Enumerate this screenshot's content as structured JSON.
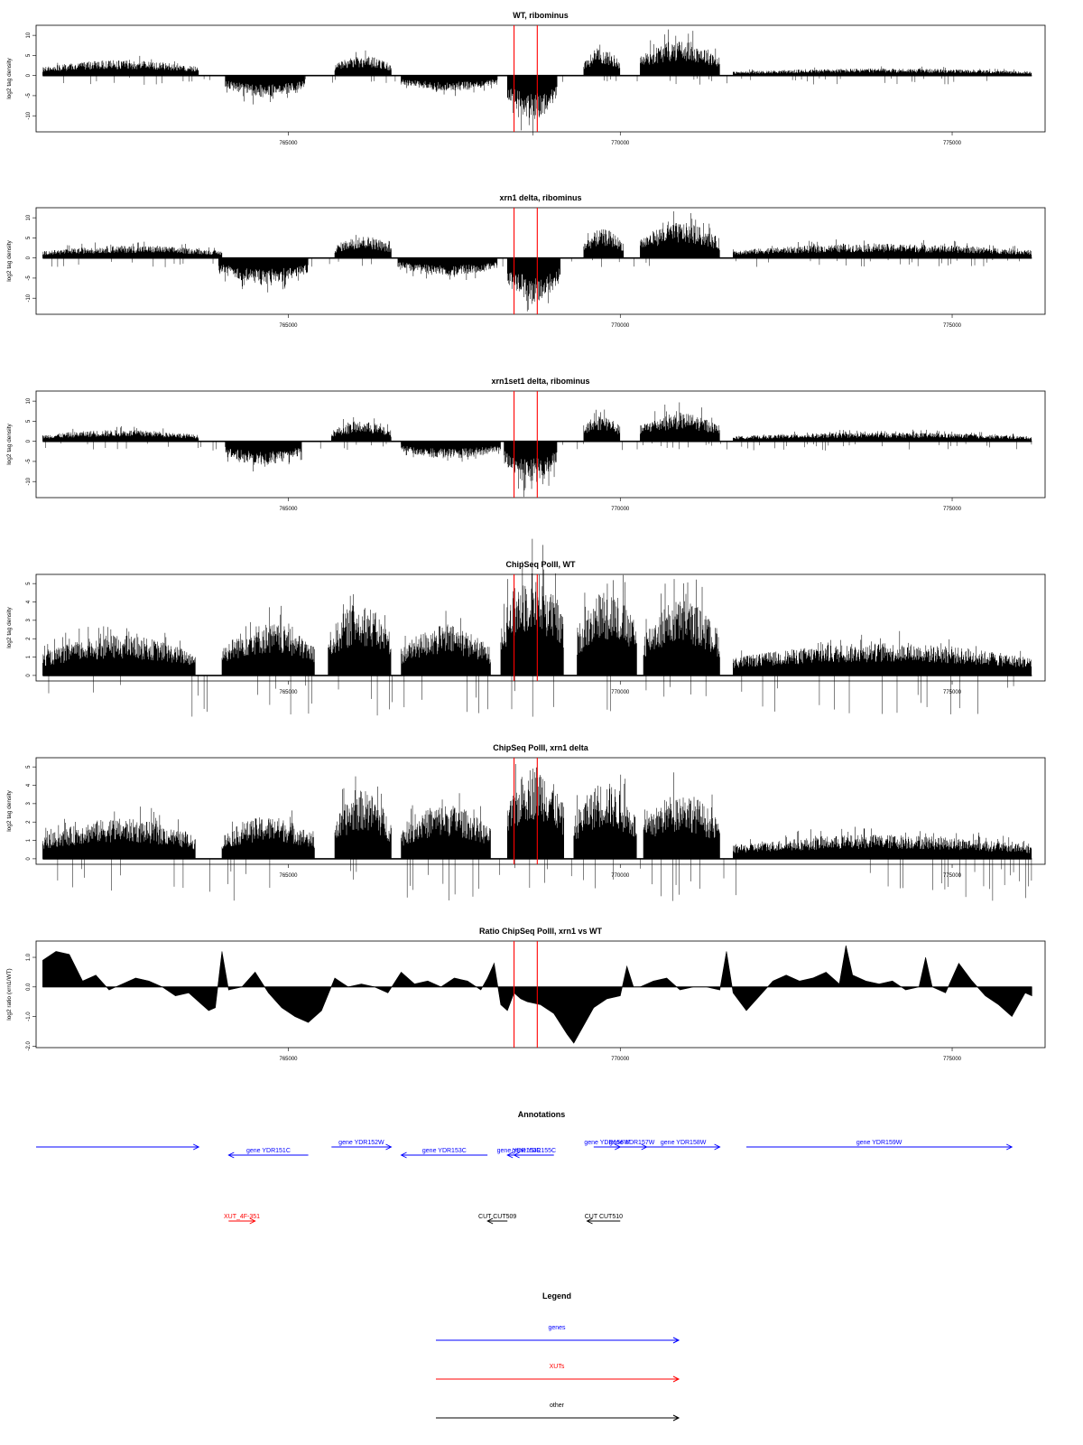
{
  "chart_data": [
    {
      "type": "bar",
      "title": "WT, ribominus",
      "ylabel": "log2 tag density",
      "ylim": [
        -14,
        12.5
      ],
      "yticks": [
        -10,
        -5,
        0,
        5,
        10
      ],
      "xlim": [
        761200,
        776400
      ],
      "xticks": [
        765000,
        770000,
        775000
      ],
      "vlines": [
        768400,
        768750
      ],
      "regions": [
        {
          "start": 761300,
          "end": 763650,
          "strand": "+",
          "amp": 3.5
        },
        {
          "start": 764050,
          "end": 765250,
          "strand": "-",
          "amp": 5.0
        },
        {
          "start": 765700,
          "end": 766550,
          "strand": "+",
          "amp": 4.5
        },
        {
          "start": 766700,
          "end": 768150,
          "strand": "-",
          "amp": 3.5
        },
        {
          "start": 768300,
          "end": 769050,
          "strand": "-",
          "amp": 10.0
        },
        {
          "start": 769450,
          "end": 770000,
          "strand": "+",
          "amp": 6.0
        },
        {
          "start": 770300,
          "end": 771500,
          "strand": "+",
          "amp": 8.0
        },
        {
          "start": 771700,
          "end": 776200,
          "strand": "+",
          "amp": 1.6
        }
      ]
    },
    {
      "type": "bar",
      "title": "xrn1 delta, ribominus",
      "ylabel": "log2 tag density",
      "ylim": [
        -14,
        12.5
      ],
      "yticks": [
        -10,
        -5,
        0,
        5,
        10
      ],
      "xlim": [
        761200,
        776400
      ],
      "xticks": [
        765000,
        770000,
        775000
      ],
      "vlines": [
        768400,
        768750
      ],
      "regions": [
        {
          "start": 761300,
          "end": 764000,
          "strand": "+",
          "amp": 2.8
        },
        {
          "start": 763950,
          "end": 765300,
          "strand": "-",
          "amp": 6.0
        },
        {
          "start": 765700,
          "end": 766550,
          "strand": "+",
          "amp": 5.0
        },
        {
          "start": 766650,
          "end": 768150,
          "strand": "-",
          "amp": 4.0
        },
        {
          "start": 768300,
          "end": 769100,
          "strand": "-",
          "amp": 10.0
        },
        {
          "start": 769450,
          "end": 770050,
          "strand": "+",
          "amp": 6.5
        },
        {
          "start": 770300,
          "end": 771500,
          "strand": "+",
          "amp": 8.0
        },
        {
          "start": 771700,
          "end": 776200,
          "strand": "+",
          "amp": 3.2
        }
      ]
    },
    {
      "type": "bar",
      "title": "xrn1set1 delta, ribominus",
      "ylabel": "log2 tag density",
      "ylim": [
        -14,
        12.5
      ],
      "yticks": [
        -10,
        -5,
        0,
        5,
        10
      ],
      "xlim": [
        761200,
        776400
      ],
      "xticks": [
        765000,
        770000,
        775000
      ],
      "vlines": [
        768400,
        768750
      ],
      "regions": [
        {
          "start": 761300,
          "end": 763650,
          "strand": "+",
          "amp": 2.6
        },
        {
          "start": 764050,
          "end": 765200,
          "strand": "-",
          "amp": 5.5
        },
        {
          "start": 765650,
          "end": 766550,
          "strand": "+",
          "amp": 4.5
        },
        {
          "start": 766700,
          "end": 768200,
          "strand": "-",
          "amp": 4.0
        },
        {
          "start": 768250,
          "end": 769050,
          "strand": "-",
          "amp": 9.5
        },
        {
          "start": 769450,
          "end": 770000,
          "strand": "+",
          "amp": 6.0
        },
        {
          "start": 770300,
          "end": 771500,
          "strand": "+",
          "amp": 6.5
        },
        {
          "start": 771700,
          "end": 776200,
          "strand": "+",
          "amp": 2.0
        }
      ]
    },
    {
      "type": "bar",
      "title": "ChipSeq PolII, WT",
      "ylabel": "log2 tag density",
      "ylim": [
        -0.3,
        5.5
      ],
      "yticks": [
        0,
        1,
        2,
        3,
        4,
        5
      ],
      "xlim": [
        761200,
        776400
      ],
      "xticks": [
        765000,
        770000,
        775000
      ],
      "vlines": [
        768400,
        768750
      ],
      "regions": [
        {
          "start": 761300,
          "end": 763600,
          "strand": "+",
          "amp": 2.0
        },
        {
          "start": 764000,
          "end": 765400,
          "strand": "+",
          "amp": 2.6
        },
        {
          "start": 765600,
          "end": 766550,
          "strand": "+",
          "amp": 3.6
        },
        {
          "start": 766700,
          "end": 768050,
          "strand": "+",
          "amp": 2.5
        },
        {
          "start": 768200,
          "end": 769150,
          "strand": "+",
          "amp": 5.2
        },
        {
          "start": 769350,
          "end": 770250,
          "strand": "+",
          "amp": 4.3
        },
        {
          "start": 770350,
          "end": 771500,
          "strand": "+",
          "amp": 3.8
        },
        {
          "start": 771700,
          "end": 776200,
          "strand": "+",
          "amp": 1.6
        }
      ]
    },
    {
      "type": "bar",
      "title": "ChipSeq PolII, xrn1 delta",
      "ylabel": "log2 tag density",
      "ylim": [
        -0.3,
        5.5
      ],
      "yticks": [
        0,
        1,
        2,
        3,
        4,
        5
      ],
      "xlim": [
        761200,
        776400
      ],
      "xticks": [
        765000,
        770000,
        775000
      ],
      "vlines": [
        768400,
        768750
      ],
      "regions": [
        {
          "start": 761300,
          "end": 763600,
          "strand": "+",
          "amp": 2.0
        },
        {
          "start": 764000,
          "end": 765400,
          "strand": "+",
          "amp": 2.1
        },
        {
          "start": 765700,
          "end": 766550,
          "strand": "+",
          "amp": 3.4
        },
        {
          "start": 766700,
          "end": 768050,
          "strand": "+",
          "amp": 2.7
        },
        {
          "start": 768300,
          "end": 769150,
          "strand": "+",
          "amp": 4.7
        },
        {
          "start": 769300,
          "end": 770250,
          "strand": "+",
          "amp": 3.8
        },
        {
          "start": 770350,
          "end": 771500,
          "strand": "+",
          "amp": 3.3
        },
        {
          "start": 771700,
          "end": 776200,
          "strand": "+",
          "amp": 1.2
        }
      ]
    },
    {
      "type": "area",
      "title": "Ratio ChipSeq PolII, xrn1 vs WT",
      "ylabel": "log2 ratio (xrn1/WT)",
      "ylim": [
        -2.05,
        1.55
      ],
      "yticks": [
        -2.0,
        -1.0,
        0.0,
        1.0
      ],
      "ytick_labels": [
        "-2.0",
        "-1.0",
        "0.0",
        "1.0"
      ],
      "xlim": [
        761200,
        776400
      ],
      "xticks": [
        765000,
        770000,
        775000
      ],
      "vlines": [
        768400,
        768750
      ],
      "x": [
        761300,
        761500,
        761700,
        761900,
        762100,
        762300,
        762500,
        762700,
        762900,
        763100,
        763300,
        763500,
        763700,
        763800,
        763900,
        764000,
        764100,
        764300,
        764500,
        764700,
        764900,
        765100,
        765300,
        765500,
        765700,
        765900,
        766100,
        766300,
        766500,
        766700,
        766900,
        767100,
        767300,
        767500,
        767700,
        767900,
        768000,
        768100,
        768200,
        768300,
        768400,
        768500,
        768600,
        768800,
        769000,
        769200,
        769300,
        769400,
        769600,
        769800,
        770000,
        770100,
        770200,
        770300,
        770500,
        770700,
        770900,
        771100,
        771300,
        771500,
        771600,
        771700,
        771900,
        772100,
        772300,
        772500,
        772700,
        772900,
        773100,
        773300,
        773400,
        773500,
        773700,
        773900,
        774100,
        774300,
        774500,
        774600,
        774700,
        774900,
        775100,
        775300,
        775500,
        775700,
        775900,
        776100,
        776200
      ],
      "y": [
        0.9,
        1.2,
        1.1,
        0.2,
        0.4,
        -0.1,
        0.1,
        0.3,
        0.2,
        0.0,
        -0.3,
        -0.2,
        -0.6,
        -0.8,
        -0.7,
        1.2,
        -0.1,
        0.0,
        0.5,
        -0.2,
        -0.7,
        -1.0,
        -1.2,
        -0.8,
        0.3,
        0.0,
        0.1,
        0.0,
        -0.2,
        0.5,
        0.1,
        0.2,
        0.0,
        0.3,
        0.2,
        -0.1,
        0.3,
        0.8,
        -0.6,
        -0.8,
        -0.2,
        -0.4,
        -0.5,
        -0.6,
        -0.9,
        -1.6,
        -1.9,
        -1.5,
        -0.7,
        -0.4,
        -0.3,
        0.7,
        0.0,
        0.0,
        0.2,
        0.3,
        -0.1,
        0.0,
        0.0,
        -0.1,
        1.2,
        -0.2,
        -0.8,
        -0.3,
        0.2,
        0.4,
        0.2,
        0.3,
        0.5,
        0.1,
        1.4,
        0.4,
        0.2,
        0.1,
        0.2,
        -0.1,
        0.0,
        1.0,
        0.0,
        -0.2,
        0.8,
        0.2,
        -0.3,
        -0.6,
        -1.0,
        -0.2,
        -0.3
      ]
    }
  ],
  "annotations": {
    "title": "Annotations",
    "colors": {
      "genes": "#0000ff",
      "xuts": "#ff0000",
      "other": "#000000"
    },
    "features": [
      {
        "kind": "genes",
        "label": "",
        "start": 761200,
        "end": 763650,
        "row": 0,
        "strand": "+"
      },
      {
        "kind": "genes",
        "label": "gene YDR151C",
        "start": 764100,
        "end": 765300,
        "row": 1,
        "strand": "-"
      },
      {
        "kind": "genes",
        "label": "gene YDR152W",
        "start": 765650,
        "end": 766550,
        "row": 0,
        "strand": "+"
      },
      {
        "kind": "genes",
        "label": "gene YDR153C",
        "start": 766700,
        "end": 768000,
        "row": 1,
        "strand": "-"
      },
      {
        "kind": "genes",
        "label": "gene YDR154C",
        "start": 768300,
        "end": 768650,
        "row": 1,
        "strand": "-"
      },
      {
        "kind": "genes",
        "label": "gene YDR155C",
        "start": 768400,
        "end": 769000,
        "row": 1,
        "strand": "-"
      },
      {
        "kind": "genes",
        "label": "gene YDR156W",
        "start": 769600,
        "end": 770000,
        "row": 0,
        "strand": "+"
      },
      {
        "kind": "genes",
        "label": "gene YDR157W",
        "start": 769950,
        "end": 770400,
        "row": 0,
        "strand": "+"
      },
      {
        "kind": "genes",
        "label": "gene YDR158W",
        "start": 770400,
        "end": 771500,
        "row": 0,
        "strand": "+"
      },
      {
        "kind": "genes",
        "label": "gene YDR159W",
        "start": 771900,
        "end": 775900,
        "row": 0,
        "strand": "+"
      },
      {
        "kind": "xuts",
        "label": "XUT_4F-351",
        "start": 764100,
        "end": 764500,
        "row": 2,
        "strand": "+"
      },
      {
        "kind": "other",
        "label": "CUT CUT509",
        "start": 768000,
        "end": 768300,
        "row": 2,
        "strand": "-"
      },
      {
        "kind": "other",
        "label": "CUT CUT510",
        "start": 769500,
        "end": 770000,
        "row": 2,
        "strand": "-"
      }
    ]
  },
  "legend": {
    "title": "Legend",
    "items": [
      {
        "label": "genes",
        "color": "#0000ff"
      },
      {
        "label": "XUTs",
        "color": "#ff0000"
      },
      {
        "label": "other",
        "color": "#000000"
      }
    ]
  }
}
